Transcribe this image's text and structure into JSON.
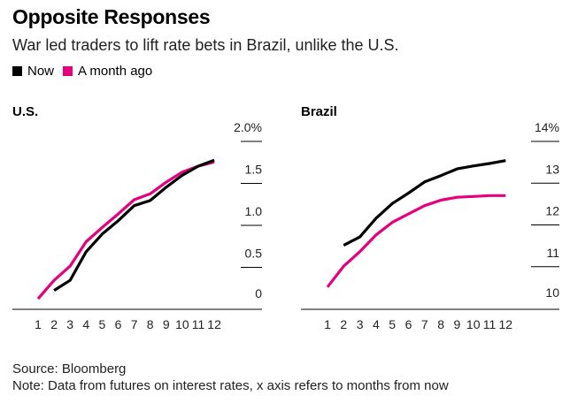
{
  "header": {
    "title": "Opposite Responses",
    "subtitle": "War led traders to lift rate bets in Brazil, unlike the U.S."
  },
  "legend": [
    {
      "label": "Now",
      "color": "#000000"
    },
    {
      "label": "A month ago",
      "color": "#e5007e"
    }
  ],
  "footer": {
    "source": "Source: Bloomberg",
    "note": "Note: Data from futures on interest rates, x axis refers to months from now"
  },
  "chart_data": [
    {
      "type": "line",
      "title": "U.S.",
      "xlabel": "months from now",
      "ylabel": "",
      "x": [
        1,
        2,
        3,
        4,
        5,
        6,
        7,
        8,
        9,
        10,
        11,
        12
      ],
      "x_tick_labels": [
        "1",
        "2",
        "3",
        "4",
        "5",
        "6",
        "7",
        "8",
        "9",
        "10",
        "11",
        "12"
      ],
      "ylim": [
        0,
        2.0
      ],
      "y_ticks": [
        0,
        0.5,
        1.0,
        1.5,
        2.0
      ],
      "y_tick_labels": [
        "0",
        "0.5",
        "1.0",
        "1.5",
        "2.0%"
      ],
      "series": [
        {
          "name": "Now",
          "color": "#000000",
          "x": [
            2,
            3,
            4,
            5,
            6,
            7,
            8,
            9,
            10,
            11,
            12
          ],
          "values": [
            0.12,
            0.24,
            0.58,
            0.79,
            0.95,
            1.13,
            1.19,
            1.35,
            1.49,
            1.6,
            1.67
          ]
        },
        {
          "name": "A month ago",
          "color": "#e5007e",
          "x": [
            1,
            2,
            3,
            4,
            5,
            6,
            7,
            8,
            9,
            10,
            11,
            12
          ],
          "values": [
            0.02,
            0.24,
            0.41,
            0.7,
            0.87,
            1.03,
            1.2,
            1.27,
            1.41,
            1.53,
            1.6,
            1.65
          ]
        }
      ]
    },
    {
      "type": "line",
      "title": "Brazil",
      "xlabel": "months from now",
      "ylabel": "",
      "x": [
        1,
        2,
        3,
        4,
        5,
        6,
        7,
        8,
        9,
        10,
        11,
        12
      ],
      "x_tick_labels": [
        "1",
        "2",
        "3",
        "4",
        "5",
        "6",
        "7",
        "8",
        "9",
        "10",
        "11",
        "12"
      ],
      "ylim": [
        10,
        14
      ],
      "y_ticks": [
        10,
        11,
        12,
        13,
        14
      ],
      "y_tick_labels": [
        "10",
        "11",
        "12",
        "13",
        "14%"
      ],
      "series": [
        {
          "name": "Now",
          "color": "#000000",
          "x": [
            2,
            3,
            4,
            5,
            6,
            7,
            8,
            9,
            10,
            11,
            12
          ],
          "values": [
            11.3,
            11.5,
            11.95,
            12.3,
            12.55,
            12.82,
            12.97,
            13.13,
            13.2,
            13.26,
            13.33
          ]
        },
        {
          "name": "A month ago",
          "color": "#e5007e",
          "x": [
            1,
            2,
            3,
            4,
            5,
            6,
            7,
            8,
            9,
            10,
            11,
            12
          ],
          "values": [
            10.3,
            10.8,
            11.15,
            11.55,
            11.85,
            12.05,
            12.25,
            12.38,
            12.45,
            12.47,
            12.49,
            12.49
          ]
        }
      ]
    }
  ]
}
